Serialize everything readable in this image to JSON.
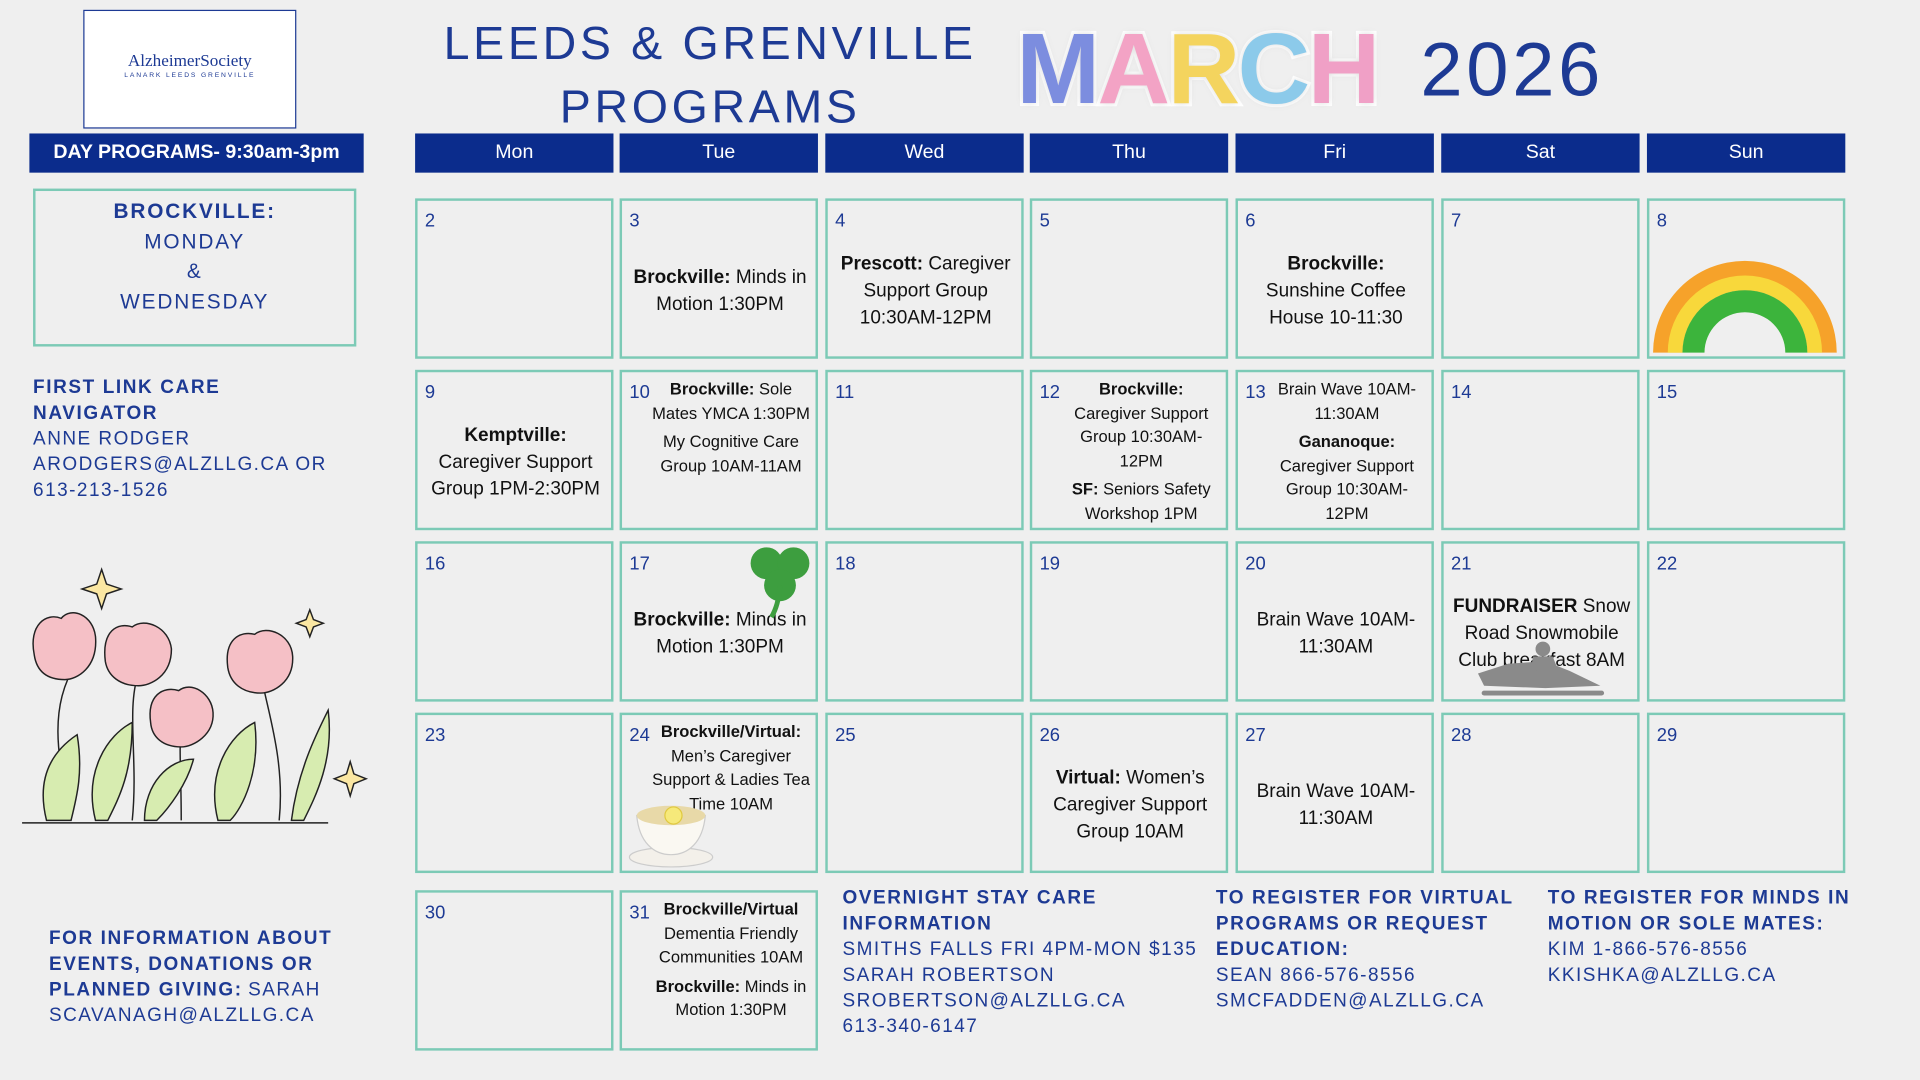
{
  "header": {
    "logo_name": "AlzheimerSociety",
    "logo_sub": "LANARK LEEDS GRENVILLE",
    "title_line1": "LEEDS & GRENVILLE",
    "title_line2": "PROGRAMS",
    "month": "MARCH",
    "year": "2026"
  },
  "sidebar": {
    "day_programs": "DAY PROGRAMS- 9:30am-3pm",
    "brockville": [
      "BROCKVILLE:",
      "MONDAY",
      "&",
      "WEDNESDAY"
    ],
    "first_link": {
      "heading": "FIRST LINK CARE NAVIGATOR",
      "lines": [
        "ANNE RODGER",
        "ARODGERS@ALZLLG.CA OR",
        "613-213-1526"
      ]
    },
    "info": {
      "heading": "FOR INFORMATION ABOUT EVENTS, DONATIONS OR PLANNED GIVING:",
      "text": "SARAH SCAVANAGH@ALZLLG.CA"
    }
  },
  "weekdays": [
    "Mon",
    "Tue",
    "Wed",
    "Thu",
    "Fri",
    "Sat",
    "Sun"
  ],
  "cells": [
    {
      "day": "2",
      "entries": []
    },
    {
      "day": "3",
      "entries": [
        {
          "label": "Brockville:",
          "text": "Minds in Motion 1:30PM"
        }
      ]
    },
    {
      "day": "4",
      "entries": [
        {
          "label": "Prescott:",
          "text": "Caregiver Support Group 10:30AM-12PM"
        }
      ]
    },
    {
      "day": "5",
      "entries": []
    },
    {
      "day": "6",
      "entries": [
        {
          "label": "Brockville:",
          "text": "Sunshine Coffee House 10-11:30"
        }
      ]
    },
    {
      "day": "7",
      "entries": []
    },
    {
      "day": "8",
      "entries": []
    },
    {
      "day": "9",
      "entries": [
        {
          "label": "Kemptville:",
          "text": "Caregiver Support Group 1PM-2:30PM"
        }
      ]
    },
    {
      "day": "10",
      "entries": [
        {
          "label": "Brockville:",
          "text": "Sole Mates YMCA 1:30PM"
        },
        {
          "text": "My Cognitive Care Group 10AM-11AM"
        }
      ]
    },
    {
      "day": "11",
      "entries": []
    },
    {
      "day": "12",
      "entries": [
        {
          "label": "Brockville:",
          "text": "Caregiver Support Group 10:30AM-12PM"
        },
        {
          "label": "SF:",
          "text": "Seniors Safety Workshop 1PM"
        }
      ]
    },
    {
      "day": "13",
      "entries": [
        {
          "text": "Brain Wave 10AM-11:30AM"
        },
        {
          "label": "Gananoque:",
          "text": "Caregiver Support Group 10:30AM-12PM"
        }
      ]
    },
    {
      "day": "14",
      "entries": []
    },
    {
      "day": "15",
      "entries": []
    },
    {
      "day": "16",
      "entries": []
    },
    {
      "day": "17",
      "entries": [
        {
          "label": "Brockville:",
          "text": "Minds in Motion 1:30PM"
        }
      ]
    },
    {
      "day": "18",
      "entries": []
    },
    {
      "day": "19",
      "entries": []
    },
    {
      "day": "20",
      "entries": [
        {
          "text": "Brain Wave 10AM-11:30AM"
        }
      ]
    },
    {
      "day": "21",
      "entries": [
        {
          "label": "FUNDRAISER",
          "text": "Snow Road Snowmobile Club breakfast 8AM"
        }
      ]
    },
    {
      "day": "22",
      "entries": []
    },
    {
      "day": "23",
      "entries": []
    },
    {
      "day": "24",
      "entries": [
        {
          "label": "Brockville/Virtual:",
          "text": "Men’s Caregiver Support & Ladies Tea Time 10AM"
        }
      ]
    },
    {
      "day": "25",
      "entries": []
    },
    {
      "day": "26",
      "entries": [
        {
          "label": "Virtual:",
          "text": "Women’s Caregiver Support Group 10AM"
        }
      ]
    },
    {
      "day": "27",
      "entries": [
        {
          "text": "Brain Wave 10AM-11:30AM"
        }
      ]
    },
    {
      "day": "28",
      "entries": []
    },
    {
      "day": "29",
      "entries": []
    },
    {
      "day": "30",
      "entries": []
    },
    {
      "day": "31",
      "entries": [
        {
          "label": "Brockville/Virtual",
          "text": "Dementia Friendly Communities 10AM"
        },
        {
          "label": "Brockville:",
          "text": "Minds in Motion 1:30PM"
        }
      ]
    }
  ],
  "footer": [
    {
      "heading": "OVERNIGHT STAY CARE INFORMATION",
      "lines": [
        "SMITHS FALLS FRI 4PM-MON $135",
        "SARAH ROBERTSON",
        "SROBERTSON@ALZLLG.CA",
        "613-340-6147"
      ]
    },
    {
      "heading": "TO REGISTER FOR VIRTUAL PROGRAMS OR REQUEST EDUCATION:",
      "lines": [
        "SEAN 866-576-8556",
        "SMCFADDEN@ALZLLG.CA"
      ]
    },
    {
      "heading": "TO REGISTER FOR MINDS IN MOTION OR SOLE MATES:",
      "lines": [
        "KIM 1-866-576-8556",
        "KKISHKA@ALZLLG.CA"
      ]
    }
  ]
}
